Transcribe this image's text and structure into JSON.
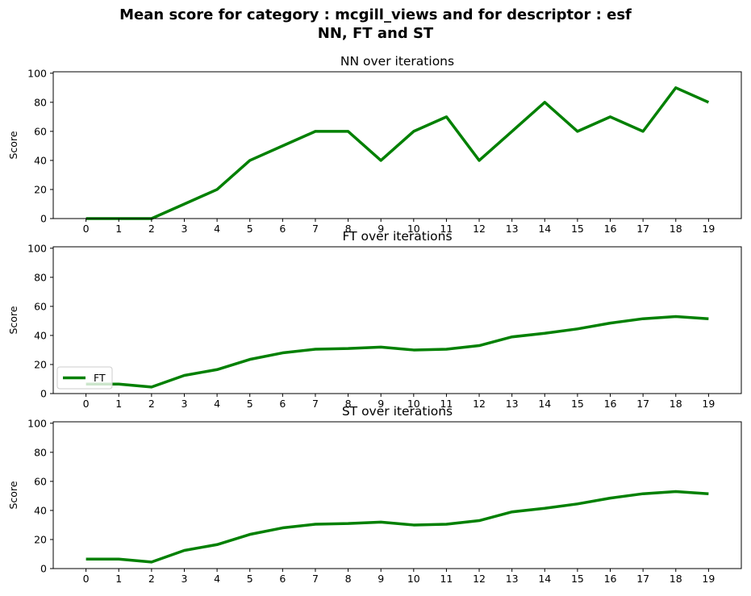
{
  "figure": {
    "title_line1": "Mean score for category : mcgill_views and for descriptor : esf",
    "title_line2": "NN, FT and ST"
  },
  "chart_data": [
    {
      "type": "line",
      "title": "NN over iterations",
      "xlabel": "",
      "ylabel": "Score",
      "x": [
        0,
        1,
        2,
        3,
        4,
        5,
        6,
        7,
        8,
        9,
        10,
        11,
        12,
        13,
        14,
        15,
        16,
        17,
        18,
        19
      ],
      "ylim": [
        0,
        100
      ],
      "yticks": [
        0,
        20,
        40,
        60,
        80,
        100
      ],
      "series": [
        {
          "name": "",
          "color": "#008000",
          "values": [
            0,
            0,
            0,
            10,
            20,
            40,
            50,
            60,
            60,
            40,
            60,
            70,
            40,
            60,
            80,
            60,
            70,
            60,
            90,
            80
          ]
        }
      ],
      "legend": null,
      "grid": false
    },
    {
      "type": "line",
      "title": "FT over iterations",
      "xlabel": "",
      "ylabel": "Score",
      "x": [
        0,
        1,
        2,
        3,
        4,
        5,
        6,
        7,
        8,
        9,
        10,
        11,
        12,
        13,
        14,
        15,
        16,
        17,
        18,
        19
      ],
      "ylim": [
        0,
        100
      ],
      "yticks": [
        0,
        20,
        40,
        60,
        80,
        100
      ],
      "series": [
        {
          "name": "FT",
          "color": "#008000",
          "values": [
            6.5,
            6.5,
            4.5,
            12.5,
            16.5,
            23.5,
            28,
            30.5,
            31,
            32,
            30,
            30.5,
            33,
            39,
            41.5,
            44.5,
            48.5,
            51.5,
            53,
            51.5
          ]
        }
      ],
      "legend": "lower-left",
      "grid": false
    },
    {
      "type": "line",
      "title": "ST over iterations",
      "xlabel": "",
      "ylabel": "Score",
      "x": [
        0,
        1,
        2,
        3,
        4,
        5,
        6,
        7,
        8,
        9,
        10,
        11,
        12,
        13,
        14,
        15,
        16,
        17,
        18,
        19
      ],
      "ylim": [
        0,
        100
      ],
      "yticks": [
        0,
        20,
        40,
        60,
        80,
        100
      ],
      "series": [
        {
          "name": "",
          "color": "#008000",
          "values": [
            6.5,
            6.5,
            4.5,
            12.5,
            16.5,
            23.5,
            28,
            30.5,
            31,
            32,
            30,
            30.5,
            33,
            39,
            41.5,
            44.5,
            48.5,
            51.5,
            53,
            51.5
          ]
        }
      ],
      "legend": null,
      "grid": false
    }
  ]
}
